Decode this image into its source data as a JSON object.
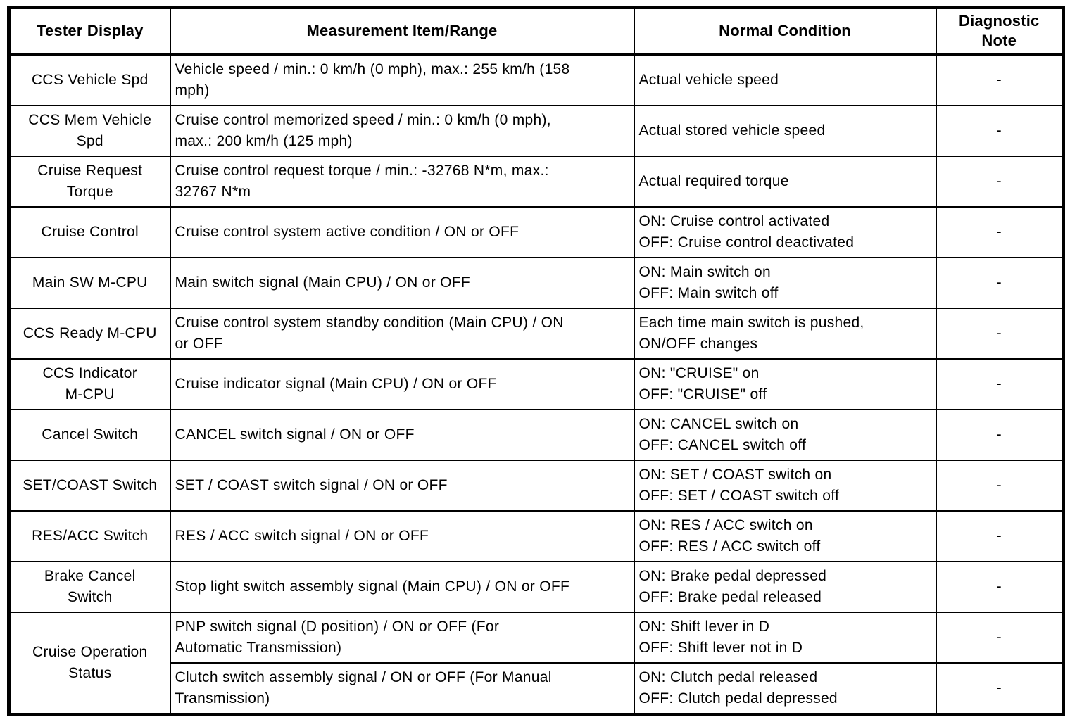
{
  "table": {
    "headers": [
      "Tester Display",
      "Measurement Item/Range",
      "Normal Condition",
      "Diagnostic\nNote"
    ],
    "rows": [
      {
        "tester": "CCS Vehicle Spd",
        "measurement": "Vehicle speed / min.: 0 km/h (0 mph), max.: 255 km/h (158\nmph)",
        "normal": "Actual vehicle speed",
        "note": "-"
      },
      {
        "tester": "CCS Mem Vehicle\nSpd",
        "measurement": "Cruise control memorized speed / min.: 0 km/h (0 mph),\nmax.: 200 km/h (125 mph)",
        "normal": "Actual stored vehicle speed",
        "note": "-"
      },
      {
        "tester": "Cruise Request\nTorque",
        "measurement": "Cruise control request torque / min.: -32768 N*m, max.:\n32767 N*m",
        "normal": "Actual required torque",
        "note": "-"
      },
      {
        "tester": "Cruise Control",
        "measurement": "Cruise control system active condition / ON or OFF",
        "normal": "ON: Cruise control activated\nOFF: Cruise control deactivated",
        "note": "-"
      },
      {
        "tester": "Main SW M-CPU",
        "measurement": "Main switch signal (Main CPU) / ON or OFF",
        "normal": "ON: Main switch on\nOFF: Main switch off",
        "note": "-"
      },
      {
        "tester": "CCS Ready M-CPU",
        "measurement": "Cruise control system standby condition (Main CPU) / ON\nor OFF",
        "normal": "Each time main switch is pushed,\nON/OFF changes",
        "note": "-"
      },
      {
        "tester": "CCS Indicator\nM-CPU",
        "measurement": "Cruise indicator signal (Main CPU) / ON or OFF",
        "normal": "ON: \"CRUISE\" on\nOFF: \"CRUISE\" off",
        "note": "-"
      },
      {
        "tester": "Cancel Switch",
        "measurement": "CANCEL switch signal / ON or OFF",
        "normal": "ON: CANCEL switch on\nOFF: CANCEL switch off",
        "note": "-"
      },
      {
        "tester": "SET/COAST Switch",
        "measurement": "SET / COAST switch signal / ON or OFF",
        "normal": "ON: SET / COAST switch on\nOFF: SET / COAST switch off",
        "note": "-"
      },
      {
        "tester": "RES/ACC Switch",
        "measurement": "RES / ACC switch signal / ON or OFF",
        "normal": "ON: RES / ACC switch on\nOFF: RES / ACC switch off",
        "note": "-"
      },
      {
        "tester": "Brake Cancel\nSwitch",
        "measurement": "Stop light switch assembly signal (Main CPU) / ON or OFF",
        "normal": "ON: Brake pedal depressed\nOFF: Brake pedal released",
        "note": "-"
      },
      {
        "tester": "Cruise Operation\nStatus",
        "measurement": "PNP switch signal (D position) / ON or OFF (For\nAutomatic Transmission)",
        "normal": "ON: Shift lever in D\nOFF: Shift lever not in D",
        "note": "-"
      },
      {
        "measurement": "Clutch switch assembly signal / ON or OFF (For Manual\nTransmission)",
        "normal": "ON: Clutch pedal released\nOFF: Clutch pedal depressed",
        "note": "-"
      }
    ]
  }
}
